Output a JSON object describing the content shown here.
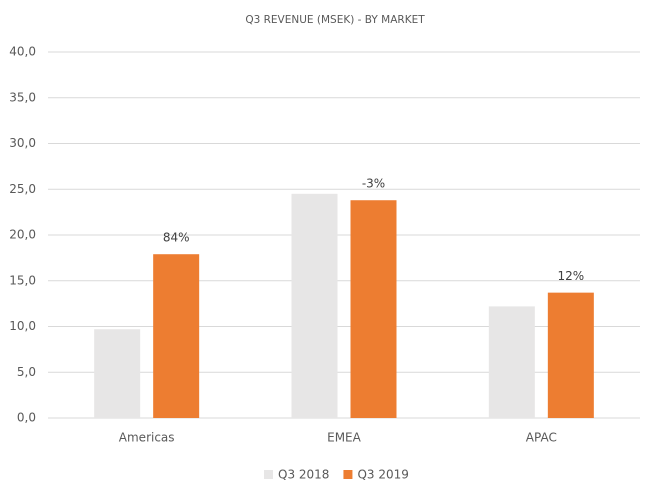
{
  "chart_data": {
    "type": "bar",
    "title": "Q3 REVENUE (MSEK) - BY MARKET",
    "categories": [
      "Americas",
      "EMEA",
      "APAC"
    ],
    "series": [
      {
        "name": "Q3 2018",
        "color": "#e7e6e6",
        "values": [
          9.7,
          24.5,
          12.2
        ]
      },
      {
        "name": "Q3 2019",
        "color": "#ed7d31",
        "values": [
          17.9,
          23.8,
          13.7
        ],
        "annotations": [
          "84%",
          "-3%",
          "12%"
        ]
      }
    ],
    "ylim": [
      0,
      40
    ],
    "yticks": [
      {
        "value": 0,
        "label": "0,0"
      },
      {
        "value": 5,
        "label": "5,0"
      },
      {
        "value": 10,
        "label": "10,0"
      },
      {
        "value": 15,
        "label": "15,0"
      },
      {
        "value": 20,
        "label": "20,0"
      },
      {
        "value": 25,
        "label": "25,0"
      },
      {
        "value": 30,
        "label": "30,0"
      },
      {
        "value": 35,
        "label": "35,0"
      },
      {
        "value": 40,
        "label": "40,0"
      }
    ],
    "grid": true,
    "legend": "bottom"
  }
}
